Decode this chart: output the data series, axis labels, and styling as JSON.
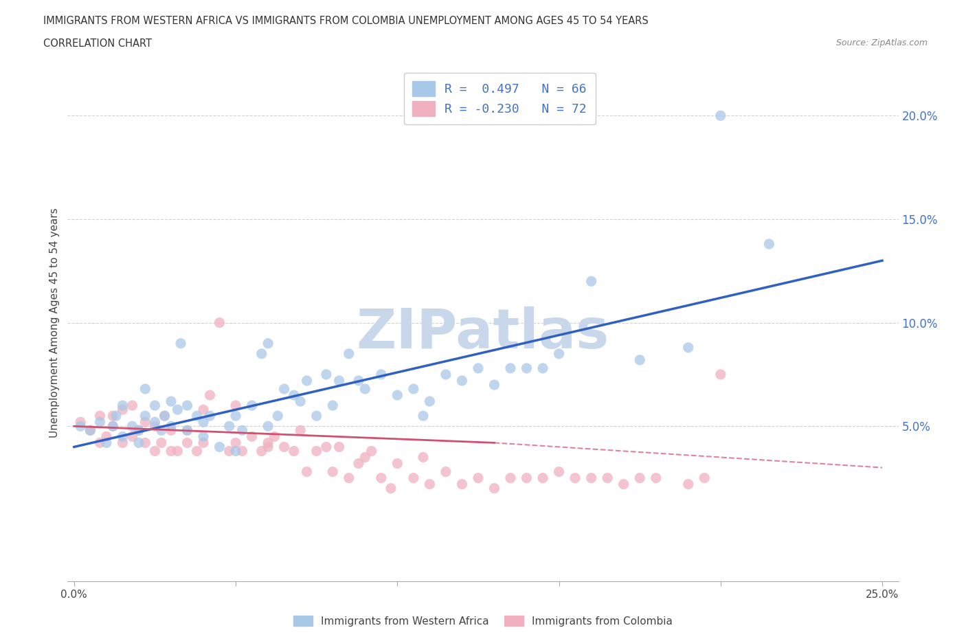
{
  "title_line1": "IMMIGRANTS FROM WESTERN AFRICA VS IMMIGRANTS FROM COLOMBIA UNEMPLOYMENT AMONG AGES 45 TO 54 YEARS",
  "title_line2": "CORRELATION CHART",
  "source_text": "Source: ZipAtlas.com",
  "ylabel": "Unemployment Among Ages 45 to 54 years",
  "xlim": [
    -0.002,
    0.255
  ],
  "ylim": [
    -0.025,
    0.225
  ],
  "yticks": [
    0.05,
    0.1,
    0.15,
    0.2
  ],
  "yticklabels": [
    "5.0%",
    "10.0%",
    "15.0%",
    "20.0%"
  ],
  "blue_color": "#a8c8e8",
  "pink_color": "#f0b0c0",
  "blue_line_color": "#3060c0",
  "pink_line_color": "#d05070",
  "grid_color": "#d0d0d0",
  "watermark_color": "#c8d8ea",
  "legend_R1": "R =  0.497",
  "legend_N1": "N = 66",
  "legend_R2": "R = -0.230",
  "legend_N2": "N = 72",
  "blue_scatter_x": [
    0.002,
    0.005,
    0.008,
    0.01,
    0.012,
    0.013,
    0.015,
    0.015,
    0.018,
    0.02,
    0.02,
    0.022,
    0.022,
    0.025,
    0.025,
    0.027,
    0.028,
    0.03,
    0.03,
    0.032,
    0.033,
    0.035,
    0.035,
    0.038,
    0.04,
    0.04,
    0.042,
    0.045,
    0.048,
    0.05,
    0.05,
    0.052,
    0.055,
    0.058,
    0.06,
    0.06,
    0.063,
    0.065,
    0.068,
    0.07,
    0.072,
    0.075,
    0.078,
    0.08,
    0.082,
    0.085,
    0.088,
    0.09,
    0.095,
    0.1,
    0.105,
    0.108,
    0.11,
    0.115,
    0.12,
    0.125,
    0.13,
    0.135,
    0.14,
    0.145,
    0.15,
    0.16,
    0.175,
    0.19,
    0.2,
    0.215
  ],
  "blue_scatter_y": [
    0.05,
    0.048,
    0.052,
    0.042,
    0.05,
    0.055,
    0.06,
    0.045,
    0.05,
    0.042,
    0.048,
    0.055,
    0.068,
    0.052,
    0.06,
    0.048,
    0.055,
    0.05,
    0.062,
    0.058,
    0.09,
    0.048,
    0.06,
    0.055,
    0.045,
    0.052,
    0.055,
    0.04,
    0.05,
    0.038,
    0.055,
    0.048,
    0.06,
    0.085,
    0.09,
    0.05,
    0.055,
    0.068,
    0.065,
    0.062,
    0.072,
    0.055,
    0.075,
    0.06,
    0.072,
    0.085,
    0.072,
    0.068,
    0.075,
    0.065,
    0.068,
    0.055,
    0.062,
    0.075,
    0.072,
    0.078,
    0.07,
    0.078,
    0.078,
    0.078,
    0.085,
    0.12,
    0.082,
    0.088,
    0.2,
    0.138
  ],
  "pink_scatter_x": [
    0.002,
    0.005,
    0.008,
    0.008,
    0.01,
    0.012,
    0.012,
    0.015,
    0.015,
    0.018,
    0.018,
    0.02,
    0.022,
    0.022,
    0.025,
    0.025,
    0.027,
    0.028,
    0.03,
    0.03,
    0.032,
    0.035,
    0.035,
    0.038,
    0.04,
    0.04,
    0.042,
    0.045,
    0.048,
    0.05,
    0.05,
    0.052,
    0.055,
    0.058,
    0.06,
    0.06,
    0.062,
    0.065,
    0.068,
    0.07,
    0.072,
    0.075,
    0.078,
    0.08,
    0.082,
    0.085,
    0.088,
    0.09,
    0.092,
    0.095,
    0.098,
    0.1,
    0.105,
    0.108,
    0.11,
    0.115,
    0.12,
    0.125,
    0.13,
    0.135,
    0.14,
    0.145,
    0.15,
    0.155,
    0.16,
    0.165,
    0.17,
    0.175,
    0.18,
    0.19,
    0.195,
    0.2
  ],
  "pink_scatter_y": [
    0.052,
    0.048,
    0.042,
    0.055,
    0.045,
    0.05,
    0.055,
    0.042,
    0.058,
    0.045,
    0.06,
    0.048,
    0.042,
    0.052,
    0.038,
    0.05,
    0.042,
    0.055,
    0.038,
    0.048,
    0.038,
    0.042,
    0.048,
    0.038,
    0.042,
    0.058,
    0.065,
    0.1,
    0.038,
    0.06,
    0.042,
    0.038,
    0.045,
    0.038,
    0.04,
    0.042,
    0.045,
    0.04,
    0.038,
    0.048,
    0.028,
    0.038,
    0.04,
    0.028,
    0.04,
    0.025,
    0.032,
    0.035,
    0.038,
    0.025,
    0.02,
    0.032,
    0.025,
    0.035,
    0.022,
    0.028,
    0.022,
    0.025,
    0.02,
    0.025,
    0.025,
    0.025,
    0.028,
    0.025,
    0.025,
    0.025,
    0.022,
    0.025,
    0.025,
    0.022,
    0.025,
    0.075
  ],
  "blue_trendline": [
    0.0,
    0.04,
    0.25,
    0.13
  ],
  "pink_trendline_solid": [
    0.0,
    0.05,
    0.13,
    0.042
  ],
  "pink_trendline_dash": [
    0.13,
    0.042,
    0.25,
    0.03
  ]
}
